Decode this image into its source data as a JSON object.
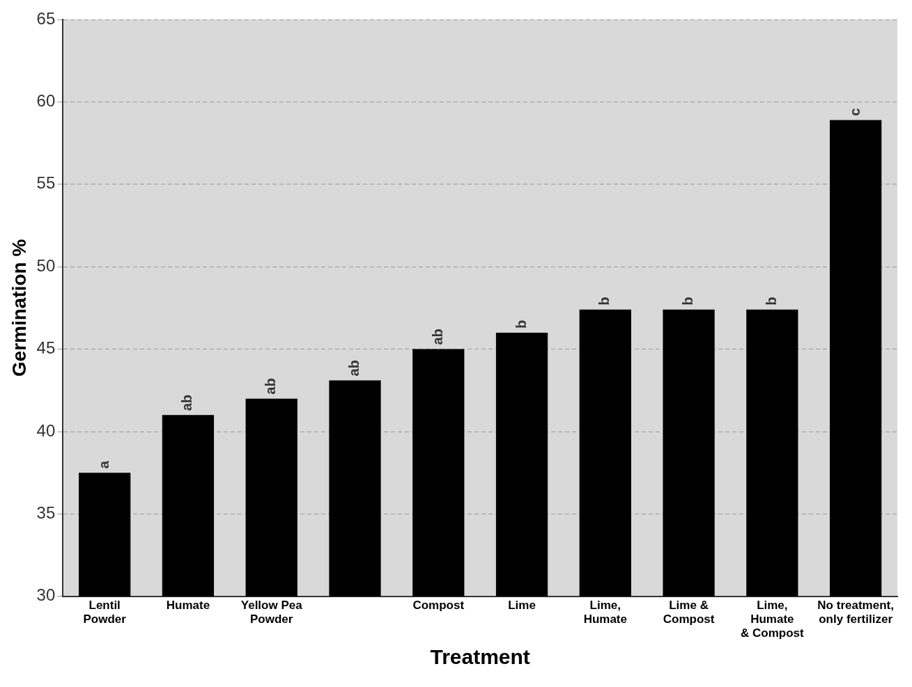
{
  "chart_data": {
    "type": "bar",
    "xlabel": "Treatment",
    "ylabel": "Germination %",
    "categories": [
      "Lentil\nPowder",
      "Humate",
      "Yellow Pea\nPowder",
      null,
      "Compost",
      "Lime",
      "Lime,\nHumate",
      "Lime &\nCompost",
      "Lime,\nHumate\n& Compost",
      "No treatment,\nonly fertilizer"
    ],
    "values": [
      37.5,
      41,
      42,
      43.1,
      45,
      46,
      47.4,
      47.4,
      47.4,
      58.9
    ],
    "value_labels": [
      "a",
      "ab",
      "ab",
      "ab",
      "ab",
      "b",
      "b",
      "b",
      "b",
      "c"
    ],
    "color": "#000000",
    "ylim": [
      30,
      65
    ],
    "yticks": [
      30,
      35,
      40,
      45,
      50,
      55,
      60,
      65
    ],
    "grid": "y",
    "legend": false
  }
}
